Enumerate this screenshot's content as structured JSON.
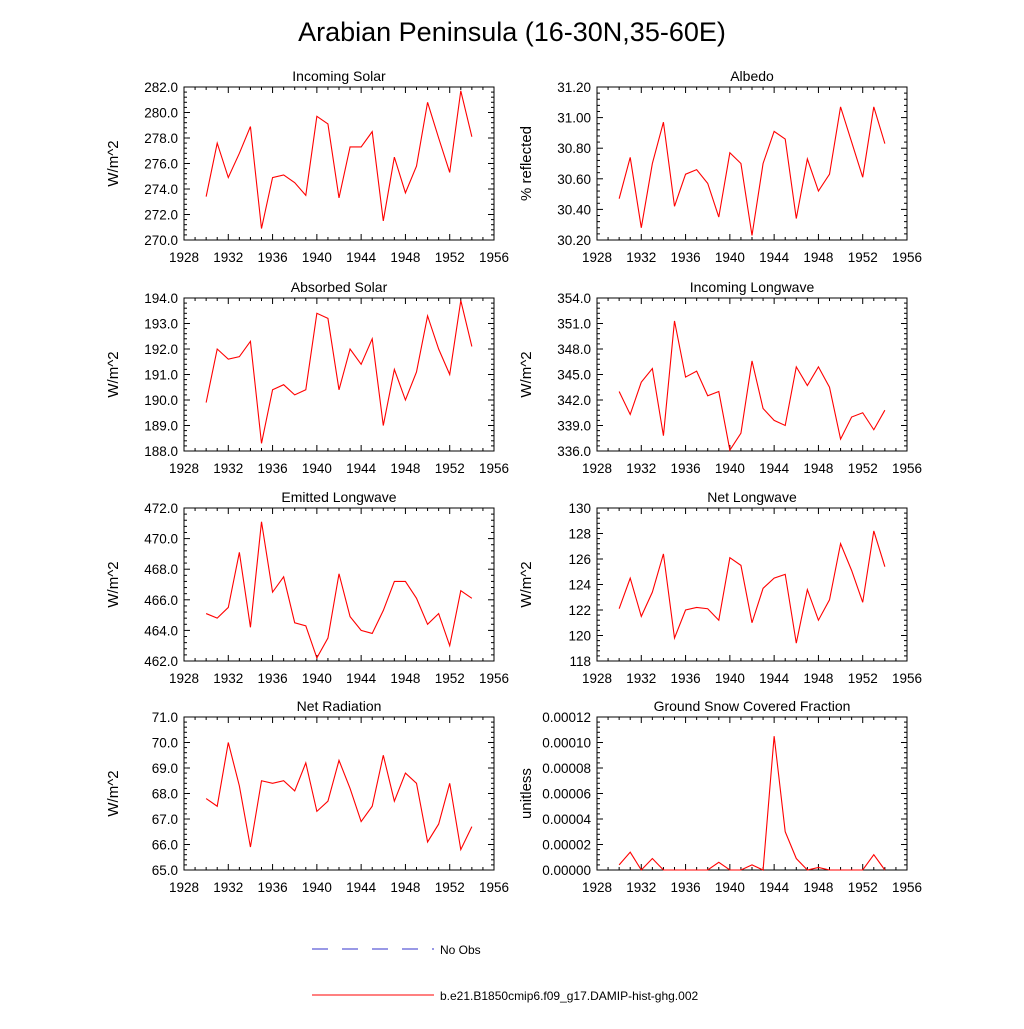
{
  "title": "Arabian Peninsula (16-30N,35-60E)",
  "colors": {
    "model_line": "#ff0000",
    "obs_line": "#3333cc",
    "axis": "#000000"
  },
  "x_ticks": [
    "1928",
    "1932",
    "1936",
    "1940",
    "1944",
    "1948",
    "1952",
    "1956"
  ],
  "legend": {
    "items": [
      {
        "label": "No Obs",
        "style": "dashed",
        "color": "#3333cc"
      },
      {
        "label": "b.e21.B1850cmip6.f09_g17.DAMIP-hist-ghg.002",
        "style": "solid",
        "color": "#ff0000"
      }
    ]
  },
  "chart_data": [
    {
      "type": "line",
      "title": "Incoming Solar",
      "ylabel": "W/m^2",
      "xlim": [
        1928,
        1956
      ],
      "ylim": [
        270,
        282
      ],
      "yticks": [
        "270.0",
        "272.0",
        "274.0",
        "276.0",
        "278.0",
        "280.0",
        "282.0"
      ],
      "series": [
        {
          "name": "b.e21.B1850cmip6.f09_g17.DAMIP-hist-ghg.002",
          "x": [
            1930,
            1931,
            1932,
            1933,
            1934,
            1935,
            1936,
            1937,
            1938,
            1939,
            1940,
            1941,
            1942,
            1943,
            1944,
            1945,
            1946,
            1947,
            1948,
            1949,
            1950,
            1951,
            1952,
            1953,
            1954
          ],
          "values": [
            273.4,
            277.6,
            274.9,
            276.8,
            278.9,
            270.9,
            274.9,
            275.1,
            274.5,
            273.5,
            279.7,
            279.1,
            273.3,
            277.3,
            277.3,
            278.5,
            271.5,
            276.5,
            273.7,
            275.8,
            280.8,
            278.0,
            275.3,
            281.7,
            278.1
          ]
        }
      ]
    },
    {
      "type": "line",
      "title": "Albedo",
      "ylabel": "% reflected",
      "xlim": [
        1928,
        1956
      ],
      "ylim": [
        30.2,
        31.2
      ],
      "yticks": [
        "30.20",
        "30.40",
        "30.60",
        "30.80",
        "31.00",
        "31.20"
      ],
      "series": [
        {
          "name": "b.e21.B1850cmip6.f09_g17.DAMIP-hist-ghg.002",
          "x": [
            1930,
            1931,
            1932,
            1933,
            1934,
            1935,
            1936,
            1937,
            1938,
            1939,
            1940,
            1941,
            1942,
            1943,
            1944,
            1945,
            1946,
            1947,
            1948,
            1949,
            1950,
            1951,
            1952,
            1953,
            1954
          ],
          "values": [
            30.47,
            30.74,
            30.28,
            30.7,
            30.97,
            30.42,
            30.63,
            30.66,
            30.57,
            30.35,
            30.77,
            30.7,
            30.23,
            30.7,
            30.91,
            30.86,
            30.34,
            30.73,
            30.52,
            30.63,
            31.07,
            30.84,
            30.61,
            31.07,
            30.83
          ]
        }
      ]
    },
    {
      "type": "line",
      "title": "Absorbed Solar",
      "ylabel": "W/m^2",
      "xlim": [
        1928,
        1956
      ],
      "ylim": [
        188,
        194
      ],
      "yticks": [
        "188.0",
        "189.0",
        "190.0",
        "191.0",
        "192.0",
        "193.0",
        "194.0"
      ],
      "series": [
        {
          "name": "b.e21.B1850cmip6.f09_g17.DAMIP-hist-ghg.002",
          "x": [
            1930,
            1931,
            1932,
            1933,
            1934,
            1935,
            1936,
            1937,
            1938,
            1939,
            1940,
            1941,
            1942,
            1943,
            1944,
            1945,
            1946,
            1947,
            1948,
            1949,
            1950,
            1951,
            1952,
            1953,
            1954
          ],
          "values": [
            189.9,
            192.0,
            191.6,
            191.7,
            192.3,
            188.3,
            190.4,
            190.6,
            190.2,
            190.4,
            193.4,
            193.2,
            190.4,
            192.0,
            191.4,
            192.4,
            189.0,
            191.2,
            190.0,
            191.1,
            193.3,
            192.0,
            191.0,
            193.9,
            192.1
          ]
        }
      ]
    },
    {
      "type": "line",
      "title": "Incoming Longwave",
      "ylabel": "W/m^2",
      "xlim": [
        1928,
        1956
      ],
      "ylim": [
        336,
        354
      ],
      "yticks": [
        "336.0",
        "339.0",
        "342.0",
        "345.0",
        "348.0",
        "351.0",
        "354.0"
      ],
      "series": [
        {
          "name": "b.e21.B1850cmip6.f09_g17.DAMIP-hist-ghg.002",
          "x": [
            1930,
            1931,
            1932,
            1933,
            1934,
            1935,
            1936,
            1937,
            1938,
            1939,
            1940,
            1941,
            1942,
            1943,
            1944,
            1945,
            1946,
            1947,
            1948,
            1949,
            1950,
            1951,
            1952,
            1953,
            1954
          ],
          "values": [
            343.0,
            340.3,
            344.1,
            345.7,
            337.8,
            351.3,
            344.7,
            345.4,
            342.5,
            343.0,
            336.1,
            338.1,
            346.6,
            341.0,
            339.6,
            339.0,
            345.9,
            343.7,
            345.9,
            343.5,
            337.4,
            340.0,
            340.5,
            338.5,
            340.8
          ]
        }
      ]
    },
    {
      "type": "line",
      "title": "Emitted Longwave",
      "ylabel": "W/m^2",
      "xlim": [
        1928,
        1956
      ],
      "ylim": [
        462,
        472
      ],
      "yticks": [
        "462.0",
        "464.0",
        "466.0",
        "468.0",
        "470.0",
        "472.0"
      ],
      "series": [
        {
          "name": "b.e21.B1850cmip6.f09_g17.DAMIP-hist-ghg.002",
          "x": [
            1930,
            1931,
            1932,
            1933,
            1934,
            1935,
            1936,
            1937,
            1938,
            1939,
            1940,
            1941,
            1942,
            1943,
            1944,
            1945,
            1946,
            1947,
            1948,
            1949,
            1950,
            1951,
            1952,
            1953,
            1954
          ],
          "values": [
            465.1,
            464.8,
            465.5,
            469.1,
            464.2,
            471.1,
            466.5,
            467.5,
            464.5,
            464.3,
            462.2,
            463.5,
            467.7,
            464.9,
            464.0,
            463.8,
            465.3,
            467.2,
            467.2,
            466.1,
            464.4,
            465.1,
            463.0,
            466.6,
            466.1
          ]
        }
      ]
    },
    {
      "type": "line",
      "title": "Net Longwave",
      "ylabel": "W/m^2",
      "xlim": [
        1928,
        1956
      ],
      "ylim": [
        118,
        130
      ],
      "yticks": [
        "118",
        "120",
        "122",
        "124",
        "126",
        "128",
        "130"
      ],
      "series": [
        {
          "name": "b.e21.B1850cmip6.f09_g17.DAMIP-hist-ghg.002",
          "x": [
            1930,
            1931,
            1932,
            1933,
            1934,
            1935,
            1936,
            1937,
            1938,
            1939,
            1940,
            1941,
            1942,
            1943,
            1944,
            1945,
            1946,
            1947,
            1948,
            1949,
            1950,
            1951,
            1952,
            1953,
            1954
          ],
          "values": [
            122.1,
            124.5,
            121.5,
            123.4,
            126.4,
            119.8,
            122.0,
            122.2,
            122.1,
            121.2,
            126.1,
            125.5,
            121.0,
            123.7,
            124.5,
            124.8,
            119.4,
            123.6,
            121.2,
            122.8,
            127.2,
            125.1,
            122.6,
            128.2,
            125.4
          ]
        }
      ]
    },
    {
      "type": "line",
      "title": "Net Radiation",
      "ylabel": "W/m^2",
      "xlim": [
        1928,
        1956
      ],
      "ylim": [
        65,
        71
      ],
      "yticks": [
        "65.0",
        "66.0",
        "67.0",
        "68.0",
        "69.0",
        "70.0",
        "71.0"
      ],
      "series": [
        {
          "name": "b.e21.B1850cmip6.f09_g17.DAMIP-hist-ghg.002",
          "x": [
            1930,
            1931,
            1932,
            1933,
            1934,
            1935,
            1936,
            1937,
            1938,
            1939,
            1940,
            1941,
            1942,
            1943,
            1944,
            1945,
            1946,
            1947,
            1948,
            1949,
            1950,
            1951,
            1952,
            1953,
            1954
          ],
          "values": [
            67.8,
            67.5,
            70.0,
            68.3,
            65.9,
            68.5,
            68.4,
            68.5,
            68.1,
            69.2,
            67.3,
            67.7,
            69.3,
            68.2,
            66.9,
            67.5,
            69.5,
            67.7,
            68.8,
            68.4,
            66.1,
            66.8,
            68.4,
            65.8,
            66.7
          ]
        }
      ]
    },
    {
      "type": "line",
      "title": "Ground Snow Covered Fraction",
      "ylabel": "unitless",
      "xlim": [
        1928,
        1956
      ],
      "ylim": [
        0,
        0.00012
      ],
      "yticks": [
        "0.00000",
        "0.00002",
        "0.00004",
        "0.00006",
        "0.00008",
        "0.00010",
        "0.00012"
      ],
      "series": [
        {
          "name": "b.e21.B1850cmip6.f09_g17.DAMIP-hist-ghg.002",
          "x": [
            1930,
            1931,
            1932,
            1933,
            1934,
            1935,
            1936,
            1937,
            1938,
            1939,
            1940,
            1941,
            1942,
            1943,
            1944,
            1945,
            1946,
            1947,
            1948,
            1949,
            1950,
            1951,
            1952,
            1953,
            1954
          ],
          "values": [
            4e-06,
            1.4e-05,
            0.0,
            9e-06,
            0.0,
            0.0,
            0.0,
            0.0,
            0.0,
            6e-06,
            0.0,
            0.0,
            4e-06,
            0.0,
            0.000105,
            3e-05,
            9e-06,
            0.0,
            2e-06,
            0.0,
            0.0,
            0.0,
            0.0,
            1.2e-05,
            0.0
          ]
        }
      ]
    }
  ]
}
